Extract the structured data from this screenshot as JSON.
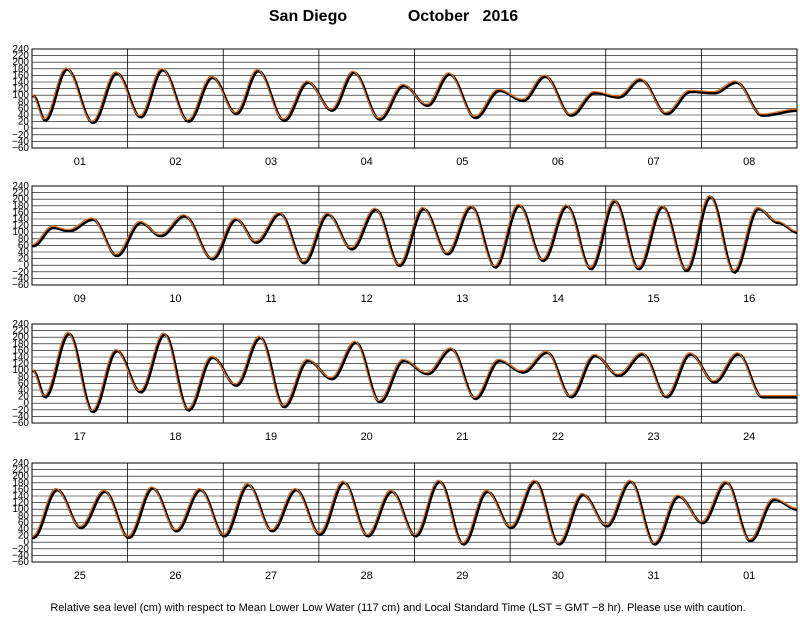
{
  "title": {
    "station": "San Diego",
    "month_year": "October   2016"
  },
  "caption": "Relative sea level (cm) with respect to Mean Lower Low Water (117 cm) and Local Standard Time (LST = GMT −8 hr). Please use with caution.",
  "colors": {
    "observed": "#000000",
    "predicted": "#e0701f",
    "grid": "#000000"
  },
  "chart_data": {
    "type": "line",
    "ylabel": "",
    "ylim": [
      -60,
      240
    ],
    "yticks": [
      "240",
      "220",
      "200",
      "180",
      "160",
      "140",
      "120",
      "100",
      "80",
      "60",
      "40",
      "20",
      "0",
      "−20",
      "−40",
      "−60"
    ],
    "grid": true,
    "series": [],
    "panels": [
      {
        "days": [
          "01",
          "02",
          "03",
          "04",
          "05",
          "06",
          "07",
          "08"
        ],
        "extrema": [
          [
            0,
            100
          ],
          [
            3,
            25
          ],
          [
            8.5,
            180
          ],
          [
            15,
            18
          ],
          [
            21,
            168
          ],
          [
            27,
            35
          ],
          [
            32.5,
            178
          ],
          [
            39,
            22
          ],
          [
            45,
            155
          ],
          [
            51,
            45
          ],
          [
            56.5,
            175
          ],
          [
            63,
            25
          ],
          [
            69,
            140
          ],
          [
            75,
            55
          ],
          [
            80.5,
            170
          ],
          [
            87,
            28
          ],
          [
            93,
            130
          ],
          [
            99,
            70
          ],
          [
            104.5,
            165
          ],
          [
            111,
            33
          ],
          [
            117,
            115
          ],
          [
            123,
            85
          ],
          [
            128.5,
            158
          ],
          [
            135,
            40
          ],
          [
            141,
            108
          ],
          [
            147,
            95
          ],
          [
            152.5,
            148
          ],
          [
            159,
            45
          ],
          [
            165,
            112
          ],
          [
            171,
            108
          ],
          [
            176.5,
            140
          ],
          [
            183,
            40
          ],
          [
            192,
            55
          ]
        ]
      },
      {
        "days": [
          "09",
          "10",
          "11",
          "12",
          "13",
          "14",
          "15",
          "16"
        ],
        "extrema": [
          [
            0,
            60
          ],
          [
            5,
            115
          ],
          [
            9,
            105
          ],
          [
            15,
            140
          ],
          [
            21,
            30
          ],
          [
            27,
            130
          ],
          [
            32,
            90
          ],
          [
            38,
            150
          ],
          [
            45,
            20
          ],
          [
            51,
            140
          ],
          [
            56,
            70
          ],
          [
            62,
            157
          ],
          [
            68,
            8
          ],
          [
            74,
            155
          ],
          [
            80,
            50
          ],
          [
            86,
            170
          ],
          [
            92,
            0
          ],
          [
            98,
            172
          ],
          [
            104,
            35
          ],
          [
            110,
            178
          ],
          [
            116,
            -5
          ],
          [
            122,
            182
          ],
          [
            128,
            15
          ],
          [
            134,
            180
          ],
          [
            140,
            -10
          ],
          [
            146,
            195
          ],
          [
            152,
            -10
          ],
          [
            158,
            178
          ],
          [
            164,
            -15
          ],
          [
            170,
            208
          ],
          [
            176,
            -20
          ],
          [
            182,
            172
          ],
          [
            187,
            130
          ],
          [
            192,
            100
          ]
        ]
      },
      {
        "days": [
          "17",
          "18",
          "19",
          "20",
          "21",
          "22",
          "23",
          "24"
        ],
        "extrema": [
          [
            0,
            100
          ],
          [
            3,
            20
          ],
          [
            9,
            212
          ],
          [
            15,
            -25
          ],
          [
            21,
            160
          ],
          [
            27,
            35
          ],
          [
            33,
            210
          ],
          [
            39,
            -20
          ],
          [
            45,
            140
          ],
          [
            51,
            55
          ],
          [
            57,
            200
          ],
          [
            63,
            -10
          ],
          [
            69,
            130
          ],
          [
            75,
            75
          ],
          [
            81,
            185
          ],
          [
            87,
            5
          ],
          [
            93,
            130
          ],
          [
            99,
            90
          ],
          [
            105,
            165
          ],
          [
            111,
            15
          ],
          [
            117,
            130
          ],
          [
            123,
            95
          ],
          [
            129,
            155
          ],
          [
            135,
            20
          ],
          [
            141,
            145
          ],
          [
            147,
            85
          ],
          [
            153,
            150
          ],
          [
            159,
            20
          ],
          [
            165,
            150
          ],
          [
            171,
            65
          ],
          [
            177,
            150
          ],
          [
            183,
            20
          ],
          [
            192,
            20
          ]
        ]
      },
      {
        "days": [
          "25",
          "26",
          "27",
          "28",
          "29",
          "30",
          "31",
          "01"
        ],
        "extrema": [
          [
            0,
            15
          ],
          [
            6,
            160
          ],
          [
            12,
            45
          ],
          [
            18,
            155
          ],
          [
            24,
            15
          ],
          [
            30,
            165
          ],
          [
            36,
            35
          ],
          [
            42,
            160
          ],
          [
            48,
            20
          ],
          [
            54,
            175
          ],
          [
            60,
            35
          ],
          [
            66,
            160
          ],
          [
            72,
            25
          ],
          [
            78,
            182
          ],
          [
            84,
            20
          ],
          [
            90,
            155
          ],
          [
            96,
            20
          ],
          [
            102,
            185
          ],
          [
            108,
            -5
          ],
          [
            114,
            155
          ],
          [
            120,
            45
          ],
          [
            126,
            185
          ],
          [
            132,
            -5
          ],
          [
            138,
            145
          ],
          [
            144,
            50
          ],
          [
            150,
            185
          ],
          [
            156,
            -5
          ],
          [
            162,
            140
          ],
          [
            168,
            60
          ],
          [
            174,
            182
          ],
          [
            180,
            5
          ],
          [
            186,
            130
          ],
          [
            192,
            100
          ]
        ]
      }
    ]
  }
}
